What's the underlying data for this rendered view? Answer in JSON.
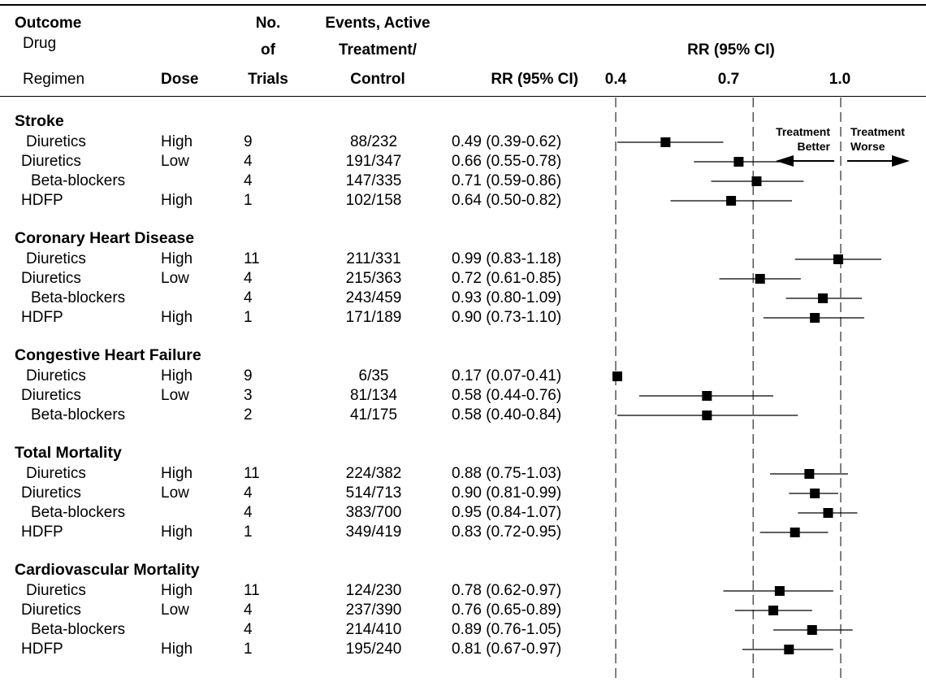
{
  "header": {
    "outcome": "Outcome",
    "drug": "Drug",
    "regimen": "Regimen",
    "dose": "Dose",
    "no": "No.",
    "of": "of",
    "trials": "Trials",
    "events1": "Events, Active",
    "events2": "Treatment/",
    "events3": "Control",
    "rr_col": "RR (95% CI)",
    "rr_plot": "RR (95% CI)",
    "ticks": [
      "0.4",
      "0.7",
      "1.0"
    ]
  },
  "annotations": {
    "better": [
      "Treatment",
      "Better"
    ],
    "worse": [
      "Treatment",
      "Worse"
    ]
  },
  "colors": {
    "ink": "#000000",
    "background": "#ffffff"
  },
  "chart_data": {
    "type": "forest",
    "reference_lines": [
      0.4,
      0.7,
      1.0
    ],
    "xlim": [
      0.4,
      1.18
    ],
    "groups": [
      {
        "title": "Stroke",
        "rows": [
          {
            "drug": "Diuretics",
            "dose": "High",
            "trials": "9",
            "events": "88/232",
            "rr_text": "0.49 (0.39-0.62)",
            "rr": 0.49,
            "lo": 0.39,
            "hi": 0.62
          },
          {
            "drug": "Diuretics",
            "dose": "Low",
            "trials": "4",
            "events": "191/347",
            "rr_text": "0.66 (0.55-0.78)",
            "rr": 0.66,
            "lo": 0.55,
            "hi": 0.78
          },
          {
            "drug": "Beta-blockers",
            "dose": "",
            "trials": "4",
            "events": "147/335",
            "rr_text": "0.71 (0.59-0.86)",
            "rr": 0.71,
            "lo": 0.59,
            "hi": 0.86
          },
          {
            "drug": "HDFP",
            "dose": "High",
            "trials": "1",
            "events": "102/158",
            "rr_text": "0.64 (0.50-0.82)",
            "rr": 0.64,
            "lo": 0.5,
            "hi": 0.82
          }
        ]
      },
      {
        "title": "Coronary Heart Disease",
        "rows": [
          {
            "drug": "Diuretics",
            "dose": "High",
            "trials": "11",
            "events": "211/331",
            "rr_text": "0.99 (0.83-1.18)",
            "rr": 0.99,
            "lo": 0.83,
            "hi": 1.18
          },
          {
            "drug": "Diuretics",
            "dose": "Low",
            "trials": "4",
            "events": "215/363",
            "rr_text": "0.72 (0.61-0.85)",
            "rr": 0.72,
            "lo": 0.61,
            "hi": 0.85
          },
          {
            "drug": "Beta-blockers",
            "dose": "",
            "trials": "4",
            "events": "243/459",
            "rr_text": "0.93 (0.80-1.09)",
            "rr": 0.93,
            "lo": 0.8,
            "hi": 1.09
          },
          {
            "drug": "HDFP",
            "dose": "High",
            "trials": "1",
            "events": "171/189",
            "rr_text": "0.90 (0.73-1.10)",
            "rr": 0.9,
            "lo": 0.73,
            "hi": 1.1
          }
        ]
      },
      {
        "title": "Congestive Heart Failure",
        "rows": [
          {
            "drug": "Diuretics",
            "dose": "High",
            "trials": "9",
            "events": "6/35",
            "rr_text": "0.17 (0.07-0.41)",
            "rr": 0.17,
            "lo": 0.07,
            "hi": 0.41
          },
          {
            "drug": "Diuretics",
            "dose": "Low",
            "trials": "3",
            "events": "81/134",
            "rr_text": "0.58 (0.44-0.76)",
            "rr": 0.58,
            "lo": 0.44,
            "hi": 0.76
          },
          {
            "drug": "Beta-blockers",
            "dose": "",
            "trials": "2",
            "events": "41/175",
            "rr_text": "0.58 (0.40-0.84)",
            "rr": 0.58,
            "lo": 0.4,
            "hi": 0.84
          }
        ]
      },
      {
        "title": "Total Mortality",
        "rows": [
          {
            "drug": "Diuretics",
            "dose": "High",
            "trials": "11",
            "events": "224/382",
            "rr_text": "0.88 (0.75-1.03)",
            "rr": 0.88,
            "lo": 0.75,
            "hi": 1.03
          },
          {
            "drug": "Diuretics",
            "dose": "Low",
            "trials": "4",
            "events": "514/713",
            "rr_text": "0.90 (0.81-0.99)",
            "rr": 0.9,
            "lo": 0.81,
            "hi": 0.99
          },
          {
            "drug": "Beta-blockers",
            "dose": "",
            "trials": "4",
            "events": "383/700",
            "rr_text": "0.95 (0.84-1.07)",
            "rr": 0.95,
            "lo": 0.84,
            "hi": 1.07
          },
          {
            "drug": "HDFP",
            "dose": "High",
            "trials": "1",
            "events": "349/419",
            "rr_text": "0.83 (0.72-0.95)",
            "rr": 0.83,
            "lo": 0.72,
            "hi": 0.95
          }
        ]
      },
      {
        "title": "Cardiovascular Mortality",
        "rows": [
          {
            "drug": "Diuretics",
            "dose": "High",
            "trials": "11",
            "events": "124/230",
            "rr_text": "0.78 (0.62-0.97)",
            "rr": 0.78,
            "lo": 0.62,
            "hi": 0.97
          },
          {
            "drug": "Diuretics",
            "dose": "Low",
            "trials": "4",
            "events": "237/390",
            "rr_text": "0.76 (0.65-0.89)",
            "rr": 0.76,
            "lo": 0.65,
            "hi": 0.89
          },
          {
            "drug": "Beta-blockers",
            "dose": "",
            "trials": "4",
            "events": "214/410",
            "rr_text": "0.89 (0.76-1.05)",
            "rr": 0.89,
            "lo": 0.76,
            "hi": 1.05
          },
          {
            "drug": "HDFP",
            "dose": "High",
            "trials": "1",
            "events": "195/240",
            "rr_text": "0.81 (0.67-0.97)",
            "rr": 0.81,
            "lo": 0.67,
            "hi": 0.97
          }
        ]
      }
    ]
  }
}
